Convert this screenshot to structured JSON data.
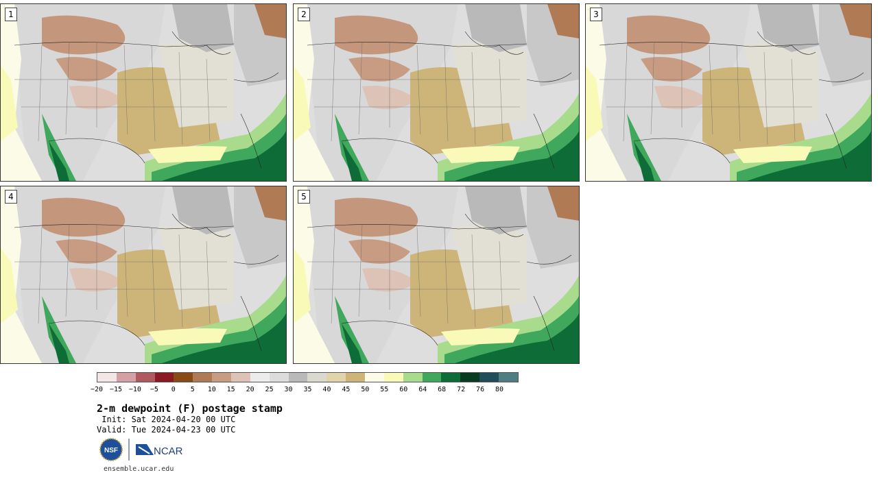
{
  "panels": [
    {
      "label": "1"
    },
    {
      "label": "2"
    },
    {
      "label": "3"
    },
    {
      "label": "4"
    },
    {
      "label": "5"
    }
  ],
  "colorbar": {
    "colors": [
      "#f3e6e6",
      "#d4a0a3",
      "#b05a5f",
      "#8b1a22",
      "#8a4a15",
      "#b07a55",
      "#c89c82",
      "#ddc3b5",
      "#ececec",
      "#dcdcdc",
      "#b9b9b9",
      "#d9d9cf",
      "#e2d4aa",
      "#cdb57a",
      "#fbfbe8",
      "#fafab8",
      "#a8dc8c",
      "#3fa85c",
      "#0e6d36",
      "#083c20",
      "#1f4d5a",
      "#4e7d82"
    ],
    "tick_labels": [
      "−20",
      "−15",
      "−10",
      "−5",
      "0",
      "5",
      "10",
      "15",
      "20",
      "25",
      "30",
      "35",
      "40",
      "45",
      "50",
      "55",
      "60",
      "64",
      "68",
      "72",
      "76",
      "80"
    ]
  },
  "title": "2-m dewpoint (F) postage stamp",
  "init": " Init: Sat 2024-04-20 00 UTC",
  "valid": "Valid: Tue 2024-04-23 00 UTC",
  "logos": {
    "nsf": "NSF",
    "ncar": "NCAR"
  },
  "credit": "ensemble.ucar.edu"
}
